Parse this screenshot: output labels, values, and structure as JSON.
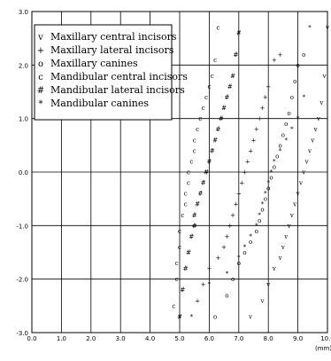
{
  "chart_data": {
    "type": "scatter",
    "title": "",
    "xlabel": "(mm)",
    "ylabel": "",
    "xlim": [
      0,
      10
    ],
    "ylim": [
      -3,
      3
    ],
    "x_ticks": [
      0,
      1,
      2,
      3,
      4,
      5,
      6,
      7,
      8,
      9,
      10
    ],
    "y_ticks": [
      -3,
      -2,
      -1,
      0,
      1,
      2,
      3
    ],
    "x_tick_labels": [
      "0.0",
      "1.0",
      "2.0",
      "3.0",
      "4.0",
      "5.0",
      "6.0",
      "7.0",
      "8.0",
      "9.0",
      "10.0"
    ],
    "y_tick_labels": [
      "-3.0",
      "-2.0",
      "-1.0",
      "0.0",
      "1.0",
      "2.0",
      "3.0"
    ],
    "grid": true,
    "legend_position": "top-left",
    "series": [
      {
        "name": "Mandibular central incisors",
        "marker": "c",
        "x": [
          4.8,
          4.9,
          4.9,
          5.0,
          5.0,
          5.1,
          5.2,
          5.2,
          5.3,
          5.3,
          5.4,
          5.5,
          5.5,
          5.6,
          5.7,
          5.8,
          5.9,
          6.0,
          6.1,
          6.2,
          6.3
        ],
        "y": [
          -2.5,
          -2.0,
          -1.7,
          -1.4,
          -1.1,
          -0.8,
          -0.6,
          -0.4,
          -0.2,
          0.0,
          0.2,
          0.4,
          0.6,
          0.8,
          1.0,
          1.2,
          1.4,
          1.6,
          1.8,
          2.1,
          2.7
        ]
      },
      {
        "name": "Mandibular lateral incisors",
        "marker": "#",
        "x": [
          5.0,
          5.1,
          5.2,
          5.3,
          5.4,
          5.5,
          5.5,
          5.6,
          5.7,
          5.8,
          5.9,
          6.0,
          6.1,
          6.2,
          6.3,
          6.4,
          6.5,
          6.6,
          6.7,
          6.8,
          6.9,
          7.0
        ],
        "y": [
          -2.7,
          -2.2,
          -1.8,
          -1.5,
          -1.2,
          -1.0,
          -0.8,
          -0.6,
          -0.4,
          -0.2,
          0.0,
          0.2,
          0.4,
          0.6,
          0.8,
          1.0,
          1.2,
          1.4,
          1.6,
          1.8,
          2.2,
          2.6
        ]
      },
      {
        "name": "Maxillary lateral incisors",
        "marker": "+",
        "x": [
          5.6,
          5.8,
          6.0,
          6.3,
          6.5,
          6.6,
          6.7,
          6.8,
          6.9,
          7.0,
          7.1,
          7.2,
          7.3,
          7.4,
          7.5,
          7.6,
          7.7,
          7.8,
          7.9,
          8.0,
          8.2,
          8.4
        ],
        "y": [
          -2.4,
          -2.1,
          -1.8,
          -1.6,
          -1.4,
          -1.2,
          -1.0,
          -0.8,
          -0.6,
          -0.4,
          -0.2,
          0.0,
          0.2,
          0.4,
          0.6,
          0.8,
          1.0,
          1.2,
          1.4,
          1.6,
          2.1,
          2.2
        ]
      },
      {
        "name": "Maxillary canines",
        "marker": "o",
        "x": [
          6.2,
          6.6,
          6.8,
          7.0,
          7.2,
          7.4,
          7.6,
          7.7,
          7.8,
          7.9,
          8.0,
          8.1,
          8.2,
          8.3,
          8.4,
          8.5,
          8.6,
          8.7,
          8.8,
          8.9,
          9.0,
          9.2
        ],
        "y": [
          -2.7,
          -2.3,
          -2.0,
          -1.7,
          -1.5,
          -1.3,
          -1.1,
          -0.9,
          -0.7,
          -0.5,
          -0.3,
          -0.1,
          0.1,
          0.3,
          0.5,
          0.7,
          0.9,
          1.1,
          1.4,
          1.7,
          2.0,
          2.2
        ]
      },
      {
        "name": "Mandibular canines",
        "marker": "*",
        "x": [
          5.4,
          6.0,
          6.6,
          7.0,
          7.2,
          7.4,
          7.6,
          7.7,
          7.8,
          7.9,
          8.0,
          8.1,
          8.2,
          8.4,
          8.6,
          8.8,
          9.0,
          9.2,
          9.4
        ],
        "y": [
          -2.7,
          -2.1,
          -1.9,
          -1.6,
          -1.4,
          -1.2,
          -1.0,
          -0.8,
          -0.6,
          -0.4,
          -0.2,
          0.0,
          0.2,
          0.4,
          0.6,
          0.8,
          1.0,
          1.4,
          2.7
        ]
      },
      {
        "name": "Maxillary central incisors",
        "marker": "v",
        "x": [
          7.4,
          7.8,
          8.0,
          8.2,
          8.4,
          8.5,
          8.6,
          8.7,
          8.8,
          8.9,
          9.0,
          9.1,
          9.2,
          9.3,
          9.4,
          9.5,
          9.6,
          9.7,
          9.8,
          9.9,
          10.0
        ],
        "y": [
          -2.7,
          -2.4,
          -2.1,
          -1.8,
          -1.6,
          -1.4,
          -1.2,
          -1.0,
          -0.8,
          -0.6,
          -0.4,
          -0.2,
          0.0,
          0.2,
          0.4,
          0.6,
          0.8,
          1.0,
          1.3,
          1.8,
          2.7
        ]
      }
    ]
  }
}
